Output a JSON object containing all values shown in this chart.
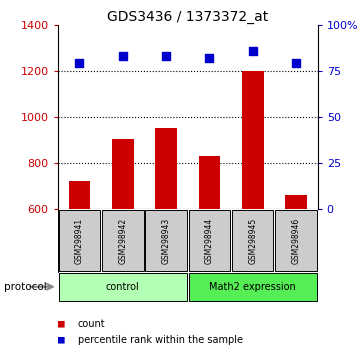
{
  "title": "GDS3436 / 1373372_at",
  "samples": [
    "GSM298941",
    "GSM298942",
    "GSM298943",
    "GSM298944",
    "GSM298945",
    "GSM298946"
  ],
  "bar_values": [
    720,
    905,
    950,
    830,
    1200,
    660
  ],
  "percentile_values": [
    79,
    83,
    83,
    82,
    86,
    79
  ],
  "ylim_left": [
    600,
    1400
  ],
  "ylim_right": [
    0,
    100
  ],
  "yticks_left": [
    600,
    800,
    1000,
    1200,
    1400
  ],
  "yticks_right": [
    0,
    25,
    50,
    75,
    100
  ],
  "ytick_right_labels": [
    "0",
    "25",
    "50",
    "75",
    "100%"
  ],
  "bar_color": "#cc0000",
  "dot_color": "#0000cc",
  "bar_bottom": 600,
  "groups": [
    {
      "label": "control",
      "start": 0,
      "end": 3,
      "color": "#b3ffb3"
    },
    {
      "label": "Math2 expression",
      "start": 3,
      "end": 6,
      "color": "#55ee55"
    }
  ],
  "protocol_label": "protocol",
  "legend_bar_label": "count",
  "legend_dot_label": "percentile rank within the sample",
  "tick_label_color_left": "#cc0000",
  "tick_label_color_right": "#0000cc",
  "sample_box_color": "#cccccc",
  "title_fontsize": 10,
  "bar_width": 0.5
}
